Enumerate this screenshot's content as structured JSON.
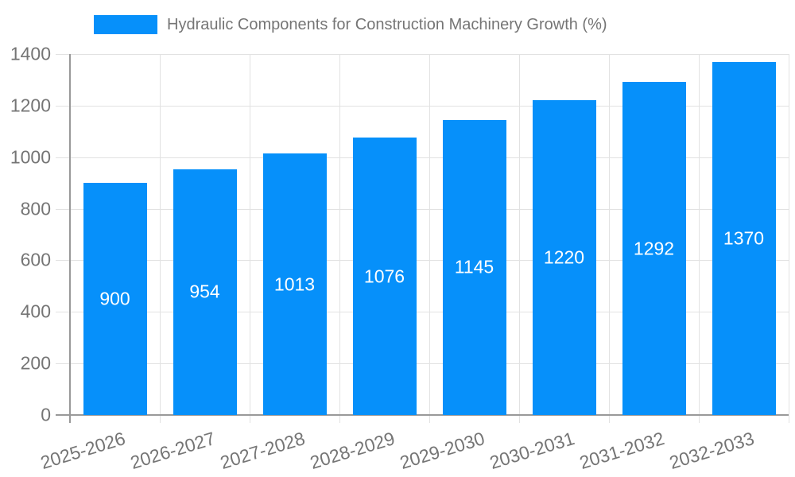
{
  "colors": {
    "bar": "#0690fa",
    "grid": "#e2e2e2",
    "axis": "#999999",
    "text": "#757575",
    "value_label": "#ffffff",
    "background": "#ffffff"
  },
  "legend": {
    "label": "Hydraulic Components for Construction Machinery Growth (%)",
    "swatch_color": "#0690fa"
  },
  "chart_data": {
    "type": "bar",
    "title": "Hydraulic Components for Construction Machinery Growth (%)",
    "categories": [
      "2025-2026",
      "2026-2027",
      "2027-2028",
      "2028-2029",
      "2029-2030",
      "2030-2031",
      "2031-2032",
      "2032-2033"
    ],
    "values": [
      900,
      954,
      1013,
      1076,
      1145,
      1220,
      1292,
      1370
    ],
    "value_labels": [
      "900",
      "954",
      "1013",
      "1076",
      "1145",
      "1220",
      "1292",
      "1370"
    ],
    "xlabel": "",
    "ylabel": "",
    "ylim": [
      0,
      1400
    ],
    "yticks": [
      0,
      200,
      400,
      600,
      800,
      1000,
      1200,
      1400
    ],
    "ytick_interval": 200,
    "grid": true,
    "legend_position": "top-left",
    "bar_labels_inside": true,
    "xtick_rotation_deg": -17
  }
}
